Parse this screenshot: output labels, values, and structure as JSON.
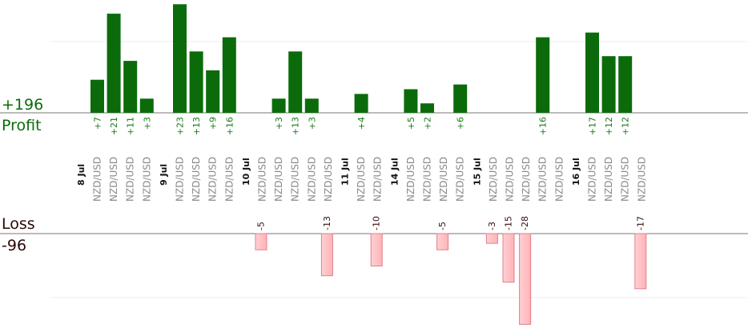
{
  "chart_data": {
    "type": "bar",
    "profit_label": "Profit",
    "loss_label": "Loss",
    "profit_total": "+196",
    "loss_total": "-96",
    "colors": {
      "profit": "#0b6b0b",
      "loss": "#ffb3b8",
      "loss_stroke": "#e08088",
      "profit_text": "#1a7a1a",
      "loss_text": "#3a0a0a"
    },
    "groups": [
      {
        "date": "8 Jul",
        "trades": [
          {
            "pair": "NZD/USD",
            "value": 7
          },
          {
            "pair": "NZD/USD",
            "value": 21
          },
          {
            "pair": "NZD/USD",
            "value": 11
          },
          {
            "pair": "NZD/USD",
            "value": 3
          }
        ]
      },
      {
        "date": "9 Jul",
        "trades": [
          {
            "pair": "NZD/USD",
            "value": 23
          },
          {
            "pair": "NZD/USD",
            "value": 13
          },
          {
            "pair": "NZD/USD",
            "value": 9
          },
          {
            "pair": "NZD/USD",
            "value": 16
          }
        ]
      },
      {
        "date": "10 Jul",
        "trades": [
          {
            "pair": "NZD/USD",
            "value": -5
          },
          {
            "pair": "NZD/USD",
            "value": 3
          },
          {
            "pair": "NZD/USD",
            "value": 13
          },
          {
            "pair": "NZD/USD",
            "value": 3
          },
          {
            "pair": "NZD/USD",
            "value": -13
          }
        ]
      },
      {
        "date": "11 Jul",
        "trades": [
          {
            "pair": "NZD/USD",
            "value": 4
          },
          {
            "pair": "NZD/USD",
            "value": -10
          }
        ]
      },
      {
        "date": "14 Jul",
        "trades": [
          {
            "pair": "NZD/USD",
            "value": 5
          },
          {
            "pair": "NZD/USD",
            "value": 2
          },
          {
            "pair": "NZD/USD",
            "value": -5
          },
          {
            "pair": "NZD/USD",
            "value": 6
          }
        ]
      },
      {
        "date": "15 Jul",
        "trades": [
          {
            "pair": "NZD/USD",
            "value": -3
          },
          {
            "pair": "NZD/USD",
            "value": -15
          },
          {
            "pair": "NZD/USD",
            "value": -28
          },
          {
            "pair": "NZD/USD",
            "value": 16
          },
          {
            "pair": "NZD/USD",
            "value": 0
          }
        ]
      },
      {
        "date": "16 Jul",
        "trades": [
          {
            "pair": "NZD/USD",
            "value": 17
          },
          {
            "pair": "NZD/USD",
            "value": 12
          },
          {
            "pair": "NZD/USD",
            "value": 12
          },
          {
            "pair": "NZD/USD",
            "value": -17
          }
        ]
      }
    ]
  }
}
